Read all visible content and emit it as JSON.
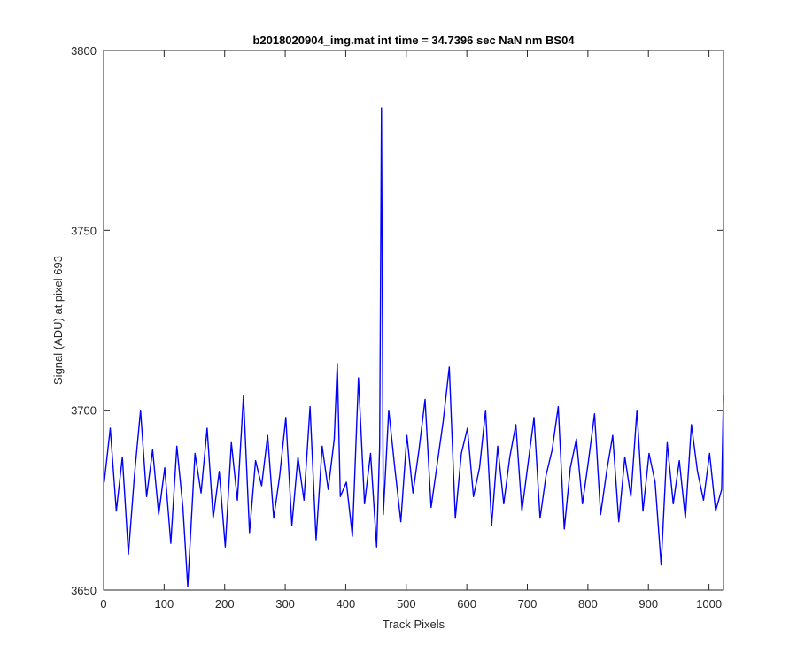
{
  "chart_data": {
    "type": "line",
    "title": "b2018020904_img.mat int time = 34.7396 sec  NaN nm BS04",
    "xlabel": "Track Pixels",
    "ylabel": "Signal (ADU) at pixel 693",
    "xlim": [
      0,
      1024
    ],
    "ylim": [
      3650,
      3800
    ],
    "xticks": [
      "0",
      "100",
      "200",
      "300",
      "400",
      "500",
      "600",
      "700",
      "800",
      "900",
      "1000"
    ],
    "yticks": [
      "3650",
      "3700",
      "3750",
      "3800"
    ],
    "grid": false,
    "series": [
      {
        "color": "#0000ff",
        "x": [
          1,
          11,
          21,
          31,
          41,
          51,
          61,
          71,
          81,
          91,
          101,
          111,
          121,
          131,
          139,
          151,
          161,
          171,
          181,
          191,
          201,
          211,
          221,
          231,
          241,
          251,
          261,
          271,
          281,
          291,
          301,
          311,
          321,
          331,
          341,
          351,
          361,
          371,
          381,
          386,
          391,
          401,
          411,
          421,
          431,
          441,
          451,
          456,
          459,
          462,
          471,
          481,
          491,
          501,
          511,
          521,
          531,
          541,
          551,
          561,
          571,
          581,
          591,
          601,
          611,
          621,
          631,
          641,
          651,
          661,
          671,
          681,
          691,
          701,
          711,
          721,
          731,
          741,
          751,
          761,
          771,
          781,
          791,
          801,
          811,
          821,
          831,
          841,
          851,
          861,
          871,
          881,
          891,
          901,
          911,
          921,
          931,
          941,
          951,
          961,
          971,
          981,
          991,
          1001,
          1011,
          1021,
          1024
        ],
        "y": [
          3680,
          3695,
          3672,
          3687,
          3660,
          3682,
          3700,
          3676,
          3689,
          3671,
          3684,
          3663,
          3690,
          3673,
          3651,
          3688,
          3677,
          3695,
          3670,
          3683,
          3662,
          3691,
          3675,
          3704,
          3666,
          3686,
          3679,
          3693,
          3670,
          3682,
          3698,
          3668,
          3687,
          3675,
          3701,
          3664,
          3690,
          3678,
          3692,
          3713,
          3676,
          3680,
          3665,
          3709,
          3674,
          3688,
          3662,
          3690,
          3784,
          3671,
          3700,
          3684,
          3669,
          3693,
          3677,
          3689,
          3703,
          3673,
          3685,
          3697,
          3712,
          3670,
          3688,
          3695,
          3676,
          3684,
          3700,
          3668,
          3690,
          3674,
          3687,
          3696,
          3672,
          3685,
          3698,
          3670,
          3682,
          3689,
          3701,
          3667,
          3684,
          3692,
          3674,
          3686,
          3699,
          3671,
          3683,
          3693,
          3669,
          3687,
          3676,
          3700,
          3672,
          3688,
          3680,
          3657,
          3691,
          3674,
          3686,
          3670,
          3696,
          3683,
          3675,
          3688,
          3672,
          3678,
          3704
        ]
      }
    ]
  }
}
